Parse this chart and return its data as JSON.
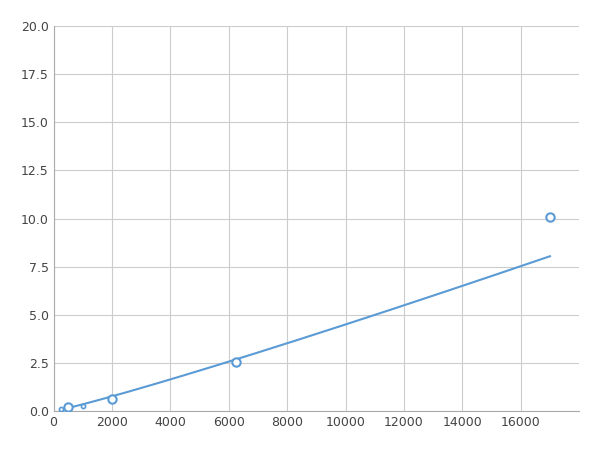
{
  "x": [
    250,
    500,
    1000,
    2000,
    6250,
    17000
  ],
  "y": [
    0.1,
    0.2,
    0.25,
    0.65,
    2.55,
    10.1
  ],
  "line_color": "#5b9bd5",
  "marker_color": "#5b9bd5",
  "marker_size": 6,
  "xlim": [
    0,
    18000
  ],
  "ylim": [
    0,
    20
  ],
  "xticks": [
    0,
    2000,
    4000,
    6000,
    8000,
    10000,
    12000,
    14000,
    16000
  ],
  "yticks": [
    0.0,
    2.5,
    5.0,
    7.5,
    10.0,
    12.5,
    15.0,
    17.5,
    20.0
  ],
  "grid_color": "#cccccc",
  "background_color": "#ffffff",
  "spine_color": "#aaaaaa",
  "visible_markers": [
    1,
    3,
    4,
    5
  ]
}
